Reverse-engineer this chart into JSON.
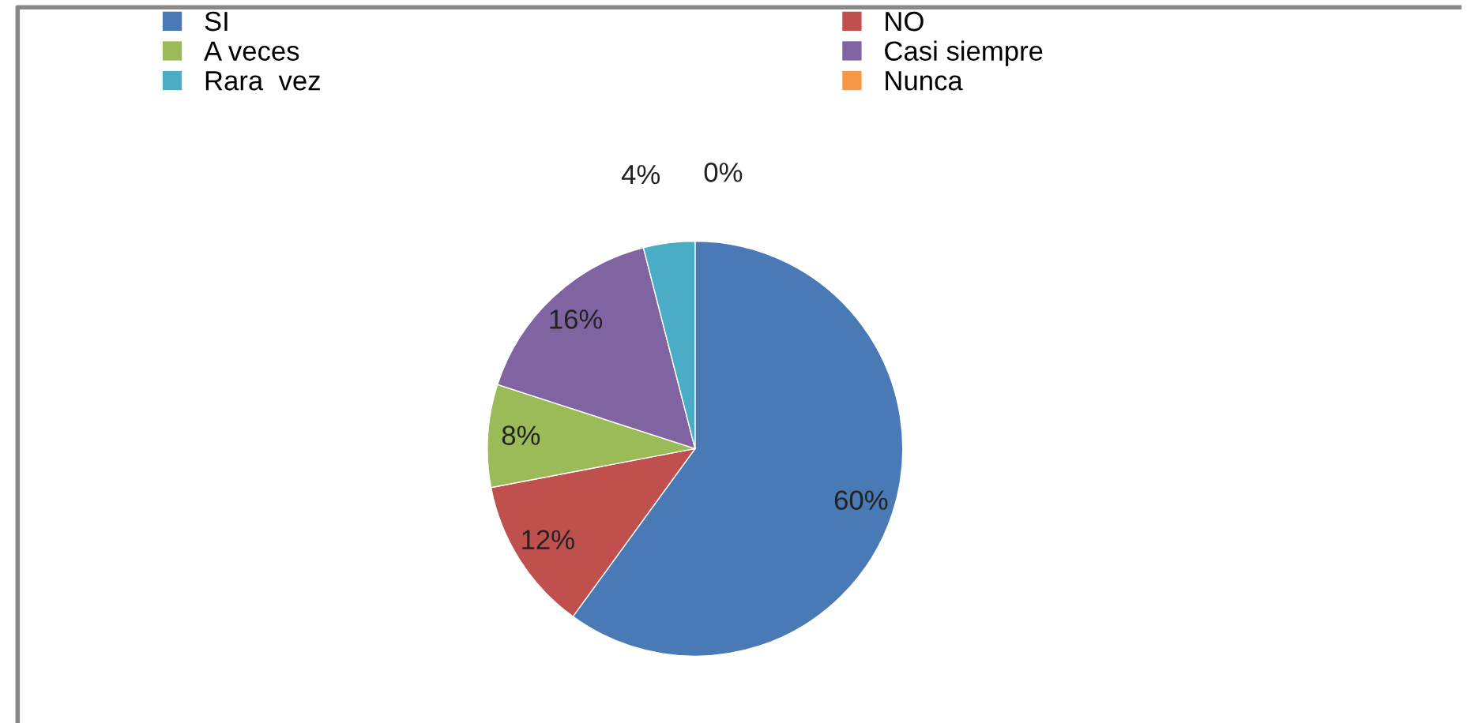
{
  "chart_data": {
    "type": "pie",
    "categories": [
      "SI",
      "NO",
      "A veces",
      "Casi siempre",
      "Rara  vez",
      "Nunca"
    ],
    "values": [
      60,
      12,
      8,
      16,
      4,
      0
    ],
    "colors": [
      "#4a7ab5",
      "#c0504d",
      "#9bbb59",
      "#8064a2",
      "#4bacc6",
      "#f79646"
    ],
    "value_labels": [
      "60%",
      "12%",
      "8%",
      "16%",
      "4%",
      "0%"
    ],
    "legend": "top"
  }
}
